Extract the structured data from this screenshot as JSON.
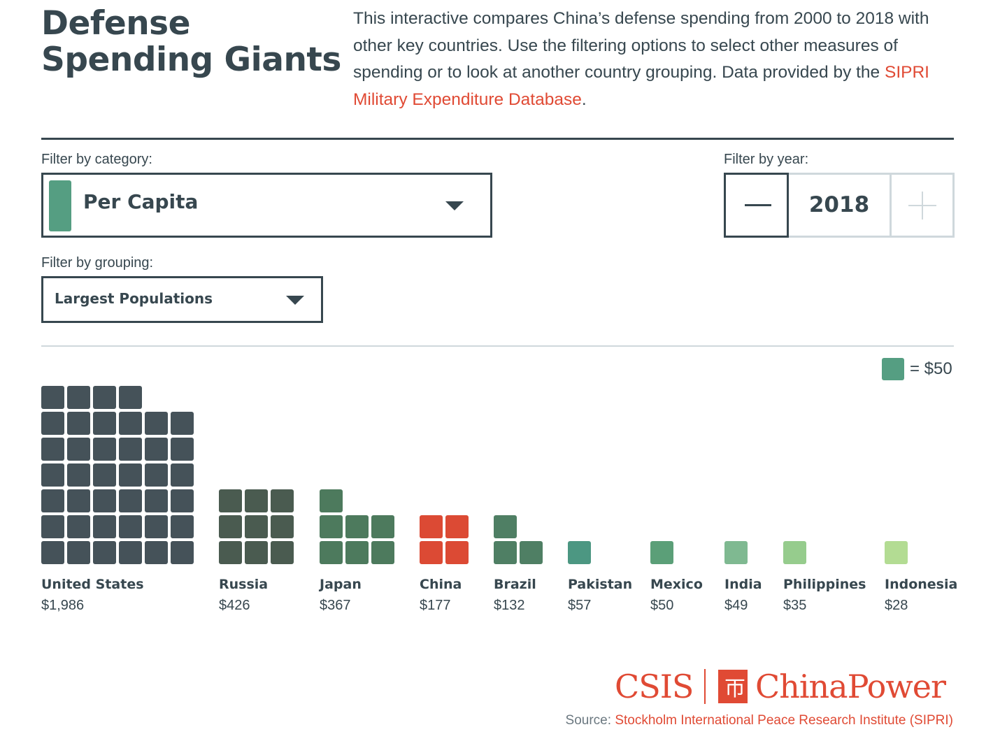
{
  "header": {
    "title_line1": "Defense",
    "title_line2": "Spending Giants",
    "intro_text": "This interactive compares China’s defense spending from 2000 to 2018 with other key countries. Use the filtering options to select other measures of spending or to look at another country grouping. Data provided by the ",
    "intro_link": "SIPRI Military Expenditure Database",
    "intro_end": "."
  },
  "filters": {
    "category_label": "Filter by category:",
    "category_value": "Per Capita",
    "category_swatch_color": "#559e82",
    "year_label": "Filter by year:",
    "year_value": "2018",
    "grouping_label": "Filter by grouping:",
    "grouping_value": "Largest Populations"
  },
  "legend": {
    "text": "= $50",
    "swatch_color": "#559e82"
  },
  "chart_data": {
    "type": "waffle",
    "unit_value": 50,
    "unit_label": "= $50",
    "categories": [
      "United States",
      "Russia",
      "Japan",
      "China",
      "Brazil",
      "Pakistan",
      "Mexico",
      "India",
      "Philippines",
      "Indonesia"
    ],
    "labels": [
      "$1,986",
      "$426",
      "$367",
      "$177",
      "$132",
      "$57",
      "$50",
      "$49",
      "$35",
      "$28"
    ],
    "values": [
      1986,
      426,
      367,
      177,
      132,
      57,
      50,
      49,
      35,
      28
    ],
    "squares": [
      40,
      9,
      7,
      4,
      3,
      1,
      1,
      1,
      1,
      1
    ],
    "columns": [
      6,
      3,
      3,
      2,
      2,
      1,
      1,
      1,
      1,
      1
    ],
    "colors": [
      "#455259",
      "#4a5b50",
      "#4d7a5d",
      "#dc4a34",
      "#4f7f64",
      "#4c9782",
      "#5b9f78",
      "#7fb991",
      "#96cc8d",
      "#b3dc93"
    ]
  },
  "footer": {
    "logo_csis": "CSIS",
    "logo_chinapower": "ChinaPower",
    "source_label": "Source: ",
    "source_link": "Stockholm International Peace Research Institute (SIPRI)"
  }
}
